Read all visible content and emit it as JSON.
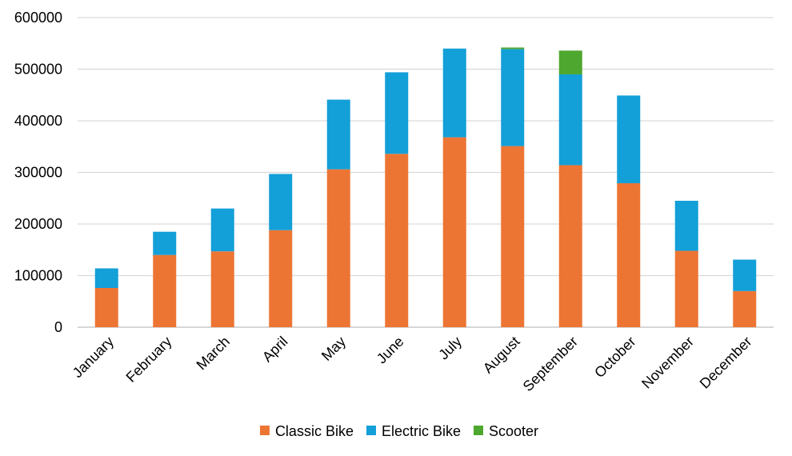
{
  "chart_data": {
    "type": "bar",
    "stacked": true,
    "categories": [
      "January",
      "February",
      "March",
      "April",
      "May",
      "June",
      "July",
      "August",
      "September",
      "October",
      "November",
      "December"
    ],
    "series": [
      {
        "name": "Classic Bike",
        "color": "#ED7533",
        "values": [
          76000,
          140000,
          147000,
          188000,
          306000,
          336000,
          368000,
          351000,
          314000,
          279000,
          148000,
          70000
        ]
      },
      {
        "name": "Electric Bike",
        "color": "#139FD8",
        "values": [
          38000,
          45000,
          83000,
          109000,
          135000,
          158000,
          172000,
          188000,
          176000,
          170000,
          97000,
          61000
        ]
      },
      {
        "name": "Scooter",
        "color": "#4EA72E",
        "values": [
          0,
          0,
          0,
          0,
          0,
          0,
          0,
          3000,
          46000,
          0,
          0,
          0
        ]
      }
    ],
    "yticks": [
      "0",
      "100000",
      "200000",
      "300000",
      "400000",
      "500000",
      "600000"
    ],
    "ylim": [
      0,
      600000
    ],
    "grid": true,
    "legend_position": "bottom"
  }
}
